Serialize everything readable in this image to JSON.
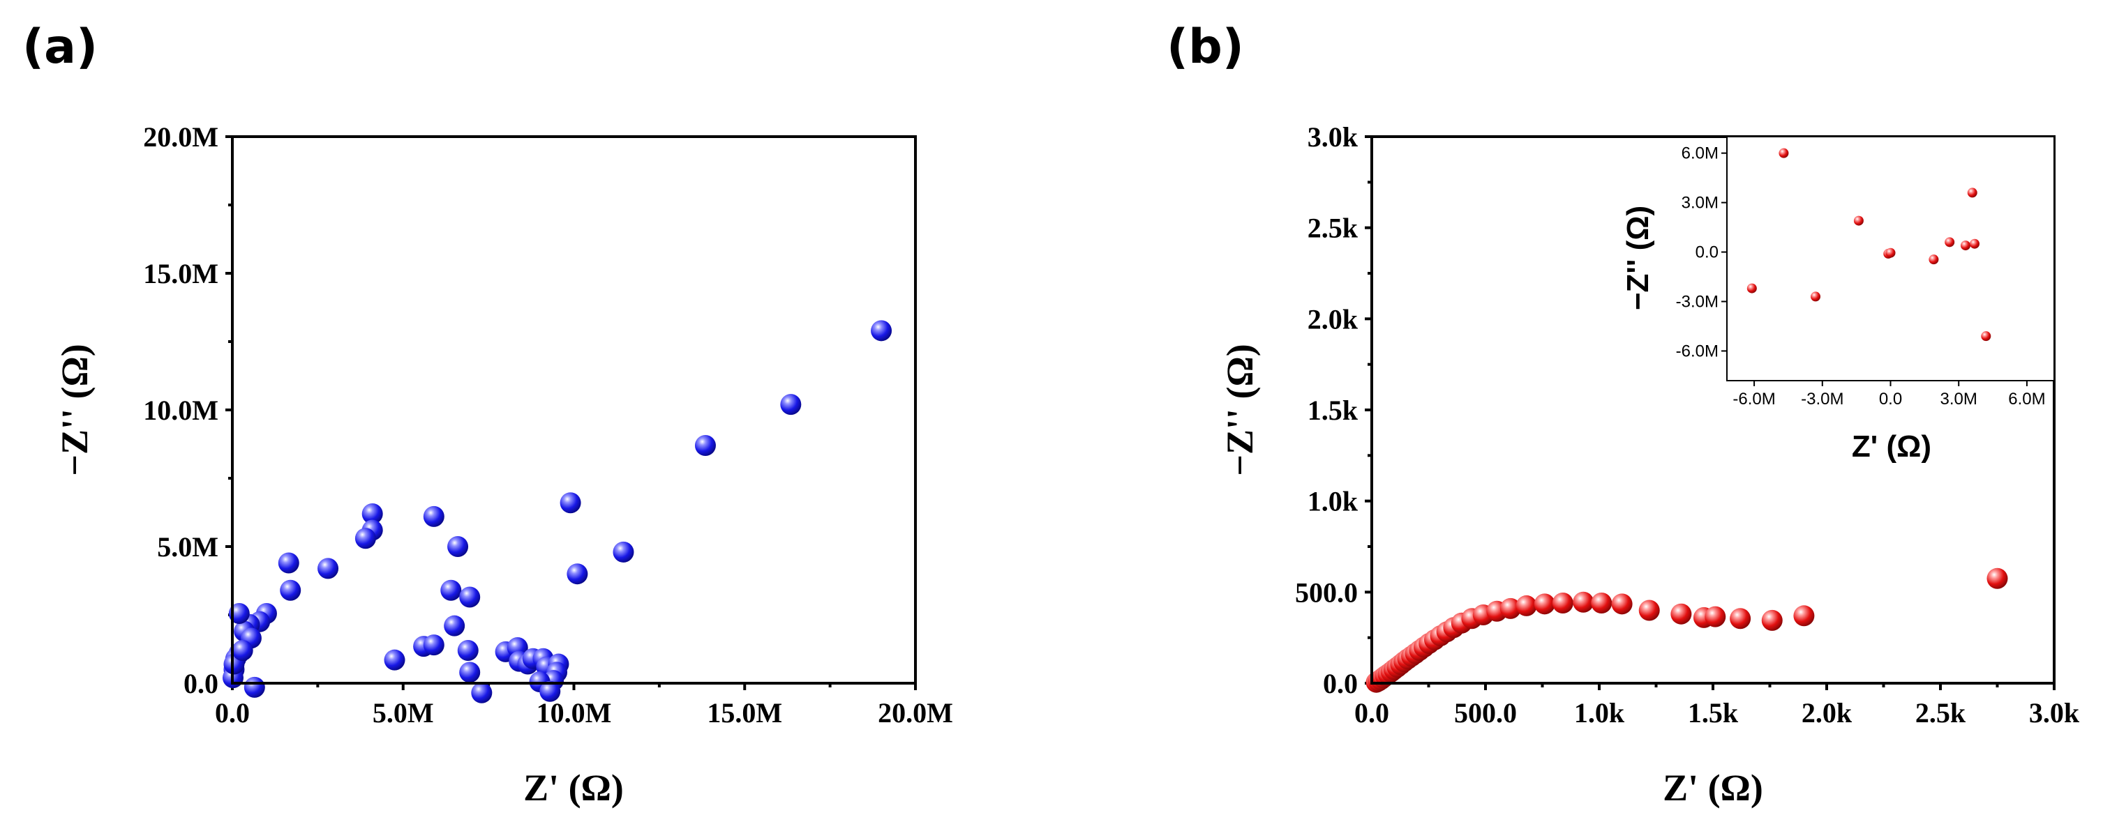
{
  "colors": {
    "series_a": "#1515e0",
    "series_b": "#e01010",
    "axis": "#000000"
  },
  "chart_data": [
    {
      "panel_label": "(a)",
      "type": "scatter",
      "xlabel": "Z' (Ω)",
      "ylabel": "−Z'' (Ω)",
      "xlim": [
        0,
        20000000
      ],
      "ylim": [
        0,
        20000000
      ],
      "xticks": [
        0,
        5000000,
        10000000,
        15000000,
        20000000
      ],
      "xtick_labels": [
        "0.0",
        "5.0M",
        "10.0M",
        "15.0M",
        "20.0M"
      ],
      "yticks": [
        0,
        5000000,
        10000000,
        15000000,
        20000000
      ],
      "ytick_labels": [
        "0.0",
        "5.0M",
        "10.0M",
        "15.0M",
        "20.0M"
      ],
      "grid": false,
      "series": [
        {
          "color": "#1515e0",
          "points": [
            [
              19000000,
              12900000
            ],
            [
              16350000,
              10200000
            ],
            [
              13850000,
              8700000
            ],
            [
              11450000,
              4800000
            ],
            [
              10100000,
              4000000
            ],
            [
              9900000,
              6600000
            ],
            [
              4100000,
              6200000
            ],
            [
              4100000,
              5600000
            ],
            [
              3900000,
              5300000
            ],
            [
              5900000,
              6100000
            ],
            [
              6600000,
              5000000
            ],
            [
              2800000,
              4200000
            ],
            [
              1650000,
              4400000
            ],
            [
              1700000,
              3400000
            ],
            [
              6400000,
              3400000
            ],
            [
              6950000,
              3150000
            ],
            [
              6500000,
              2100000
            ],
            [
              6900000,
              1200000
            ],
            [
              5600000,
              1350000
            ],
            [
              5900000,
              1400000
            ],
            [
              4750000,
              850000
            ],
            [
              6950000,
              400000
            ],
            [
              7300000,
              -350000
            ],
            [
              8000000,
              1150000
            ],
            [
              8350000,
              1300000
            ],
            [
              8400000,
              800000
            ],
            [
              8650000,
              700000
            ],
            [
              8800000,
              900000
            ],
            [
              9100000,
              900000
            ],
            [
              9200000,
              600000
            ],
            [
              9550000,
              700000
            ],
            [
              9500000,
              400000
            ],
            [
              9400000,
              100000
            ],
            [
              9000000,
              50000
            ],
            [
              9300000,
              -300000
            ],
            [
              1000000,
              2550000
            ],
            [
              800000,
              2250000
            ],
            [
              500000,
              2150000
            ],
            [
              350000,
              1900000
            ],
            [
              550000,
              1650000
            ],
            [
              200000,
              2550000
            ],
            [
              200000,
              1100000
            ],
            [
              100000,
              900000
            ],
            [
              50000,
              500000
            ],
            [
              20000,
              200000
            ],
            [
              50000,
              700000
            ],
            [
              300000,
              1200000
            ],
            [
              650000,
              -150000
            ]
          ]
        }
      ]
    },
    {
      "panel_label": "(b)",
      "type": "scatter",
      "xlabel": "Z' (Ω)",
      "ylabel": "−Z'' (Ω)",
      "xlim": [
        0,
        3000
      ],
      "ylim": [
        0,
        3000
      ],
      "xticks": [
        0,
        500,
        1000,
        1500,
        2000,
        2500,
        3000
      ],
      "xtick_labels": [
        "0.0",
        "500.0",
        "1.0k",
        "1.5k",
        "2.0k",
        "2.5k",
        "3.0k"
      ],
      "yticks": [
        0,
        500,
        1000,
        1500,
        2000,
        2500,
        3000
      ],
      "ytick_labels": [
        "0.0",
        "500.0",
        "1.0k",
        "1.5k",
        "2.0k",
        "2.5k",
        "3.0k"
      ],
      "grid": false,
      "series": [
        {
          "color": "#e01010",
          "points": [
            [
              20,
              5
            ],
            [
              30,
              12
            ],
            [
              40,
              20
            ],
            [
              50,
              30
            ],
            [
              60,
              40
            ],
            [
              72,
              50
            ],
            [
              85,
              62
            ],
            [
              98,
              75
            ],
            [
              112,
              88
            ],
            [
              127,
              103
            ],
            [
              142,
              118
            ],
            [
              158,
              133
            ],
            [
              175,
              148
            ],
            [
              192,
              163
            ],
            [
              210,
              180
            ],
            [
              230,
              198
            ],
            [
              252,
              218
            ],
            [
              276,
              238
            ],
            [
              302,
              260
            ],
            [
              330,
              282
            ],
            [
              360,
              305
            ],
            [
              395,
              330
            ],
            [
              440,
              355
            ],
            [
              490,
              375
            ],
            [
              550,
              395
            ],
            [
              610,
              410
            ],
            [
              680,
              425
            ],
            [
              760,
              435
            ],
            [
              840,
              440
            ],
            [
              930,
              445
            ],
            [
              1010,
              440
            ],
            [
              1100,
              435
            ],
            [
              1220,
              400
            ],
            [
              1360,
              380
            ],
            [
              1460,
              360
            ],
            [
              1510,
              365
            ],
            [
              1620,
              355
            ],
            [
              1760,
              345
            ],
            [
              1900,
              370
            ],
            [
              2750,
              575
            ]
          ]
        }
      ],
      "inset": {
        "type": "scatter",
        "xlabel": "Z' (Ω)",
        "ylabel": "−Z'' (Ω)",
        "xlim": [
          -7200000,
          7200000
        ],
        "ylim": [
          -7800000,
          7000000
        ],
        "xticks": [
          -6000000,
          -3000000,
          0,
          3000000,
          6000000
        ],
        "xtick_labels": [
          "-6.0M",
          "-3.0M",
          "0.0",
          "3.0M",
          "6.0M"
        ],
        "yticks": [
          -6000000,
          -3000000,
          0,
          3000000,
          6000000
        ],
        "ytick_labels": [
          "-6.0M",
          "-3.0M",
          "0.0",
          "3.0M",
          "6.0M"
        ],
        "series": [
          {
            "color": "#e01010",
            "points": [
              [
                -4700000,
                6000000
              ],
              [
                -6100000,
                -2200000
              ],
              [
                -3300000,
                -2700000
              ],
              [
                -1400000,
                1900000
              ],
              [
                -100000,
                -100000
              ],
              [
                0,
                -50000
              ],
              [
                1900000,
                -450000
              ],
              [
                2600000,
                600000
              ],
              [
                3300000,
                400000
              ],
              [
                3600000,
                3600000
              ],
              [
                3700000,
                500000
              ],
              [
                4200000,
                -5100000
              ]
            ]
          }
        ]
      }
    }
  ]
}
